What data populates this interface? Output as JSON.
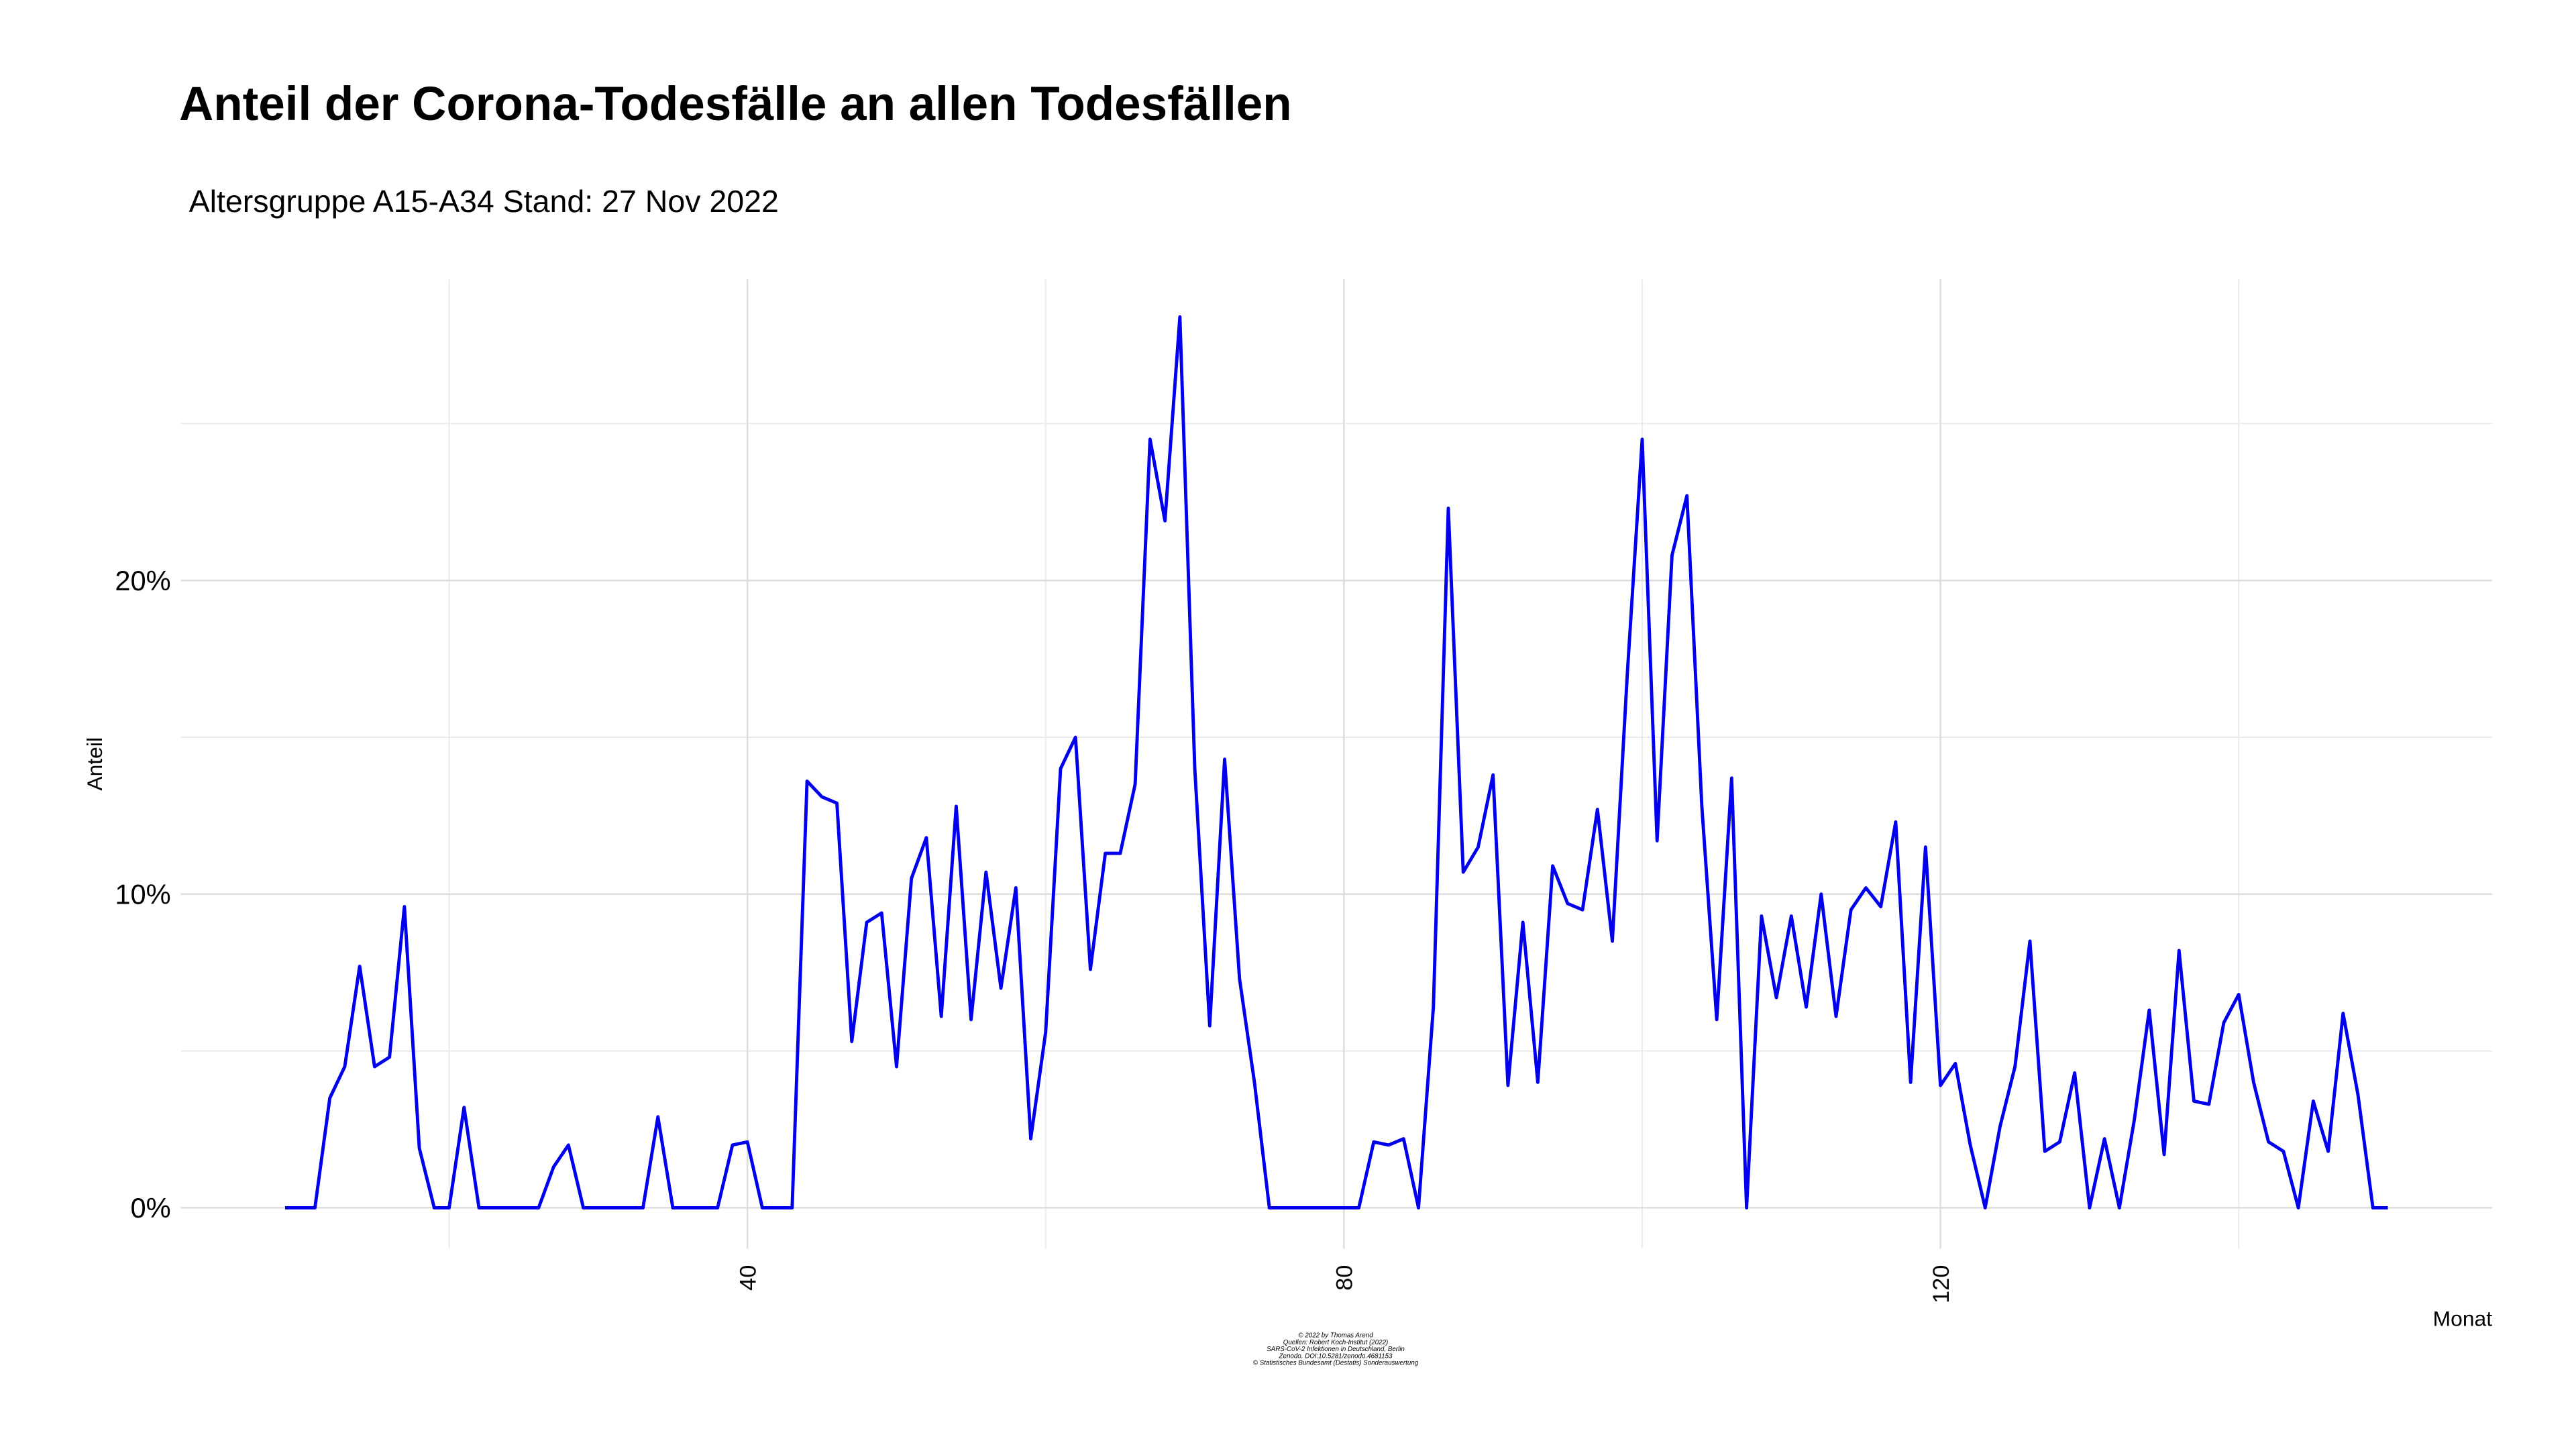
{
  "chart_data": {
    "type": "line",
    "title": "Anteil der Corona-Todesfälle an allen Todesfällen",
    "subtitle": "Altersgruppe A15-A34  Stand: 27 Nov 2022",
    "x_label": "Monat",
    "y_label": "Anteil",
    "caption": [
      "© 2022 by Thomas Arend",
      "Quellen: Robert Koch-Institut (2022)",
      "SARS-CoV-2 Infektionen in Deutschland, Berlin",
      "Zenodo. DOI:10.5281/zenodo.4681153",
      "© Statistisches Bundesamt (Destatis) Sonderauswertung"
    ],
    "x": [
      9,
      10,
      11,
      12,
      13,
      14,
      15,
      16,
      17,
      18,
      19,
      20,
      21,
      22,
      23,
      24,
      25,
      26,
      27,
      28,
      29,
      30,
      31,
      32,
      33,
      34,
      35,
      36,
      37,
      38,
      39,
      40,
      41,
      42,
      43,
      44,
      45,
      46,
      47,
      48,
      49,
      50,
      51,
      52,
      53,
      54,
      55,
      56,
      57,
      58,
      59,
      60,
      61,
      62,
      63,
      64,
      65,
      66,
      67,
      68,
      69,
      70,
      71,
      72,
      73,
      74,
      75,
      76,
      77,
      78,
      79,
      80,
      81,
      82,
      83,
      84,
      85,
      86,
      87,
      88,
      89,
      90,
      91,
      92,
      93,
      94,
      95,
      96,
      97,
      98,
      99,
      100,
      101,
      102,
      103,
      104,
      105,
      106,
      107,
      108,
      109,
      110,
      111,
      112,
      113,
      114,
      115,
      116,
      117,
      118,
      119,
      120,
      121,
      122,
      123,
      124,
      125,
      126,
      127,
      128,
      129,
      130,
      131,
      132,
      133,
      134,
      135,
      136,
      137,
      138,
      139,
      140,
      141,
      142,
      143,
      144,
      145,
      146,
      147,
      148,
      149,
      150
    ],
    "series": [
      {
        "name": "Anteil",
        "color": "#0000ee",
        "values": [
          0,
          0,
          0,
          3.5,
          4.5,
          7.7,
          4.5,
          4.8,
          9.6,
          1.9,
          0,
          0,
          3.2,
          0,
          0,
          0,
          0,
          0,
          1.3,
          2.0,
          0,
          0,
          0,
          0,
          0,
          2.9,
          0,
          0,
          0,
          0,
          2.0,
          2.1,
          0,
          0,
          0,
          13.6,
          13.1,
          12.9,
          5.3,
          9.1,
          9.4,
          4.5,
          10.5,
          11.8,
          6.1,
          12.8,
          6.0,
          10.7,
          7.0,
          10.2,
          2.2,
          5.6,
          14.0,
          15.0,
          7.6,
          11.3,
          11.3,
          13.5,
          24.5,
          21.9,
          28.4,
          14.0,
          5.8,
          14.3,
          7.3,
          4.0,
          0,
          0,
          0,
          0,
          0,
          0,
          0,
          2.1,
          2.0,
          2.2,
          0,
          6.4,
          22.3,
          10.7,
          11.5,
          13.8,
          3.9,
          9.1,
          4.0,
          10.9,
          9.7,
          9.5,
          12.7,
          8.5,
          17.0,
          24.5,
          11.7,
          20.8,
          22.7,
          12.8,
          6.0,
          13.7,
          0,
          9.3,
          6.7,
          9.3,
          6.4,
          10.0,
          6.1,
          9.5,
          10.2,
          9.6,
          12.3,
          4.0,
          11.5,
          3.9,
          4.6,
          2.0,
          0,
          2.6,
          4.5,
          8.5,
          1.8,
          2.1,
          4.3,
          0,
          2.2,
          0,
          2.8,
          6.3,
          1.7,
          8.2,
          3.4,
          3.3,
          5.9,
          6.8,
          4.0,
          2.1,
          1.8,
          0,
          3.4,
          1.8,
          6.2,
          3.6,
          0,
          0
        ]
      }
    ],
    "xlim": [
      2,
      157
    ],
    "xticks": [
      40,
      80,
      120
    ],
    "x_minor_ticks": [
      20,
      60,
      100,
      140
    ],
    "ylim": [
      -1.3,
      29.6
    ],
    "yticks": [
      {
        "value": 0,
        "label": "0%"
      },
      {
        "value": 10,
        "label": "10%"
      },
      {
        "value": 20,
        "label": "20%"
      }
    ],
    "y_minor_ticks": [
      5,
      15,
      25
    ],
    "grid": true
  }
}
